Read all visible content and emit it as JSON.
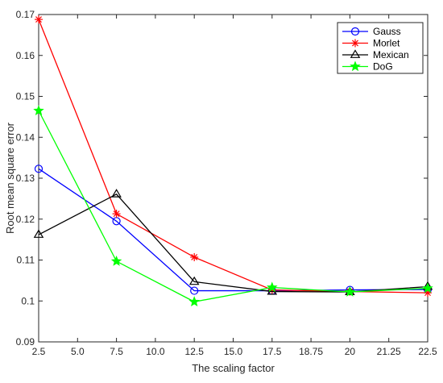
{
  "chart_data": {
    "type": "line",
    "title": "",
    "xlabel": "The scaling factor",
    "ylabel": "Root mean square error",
    "x": [
      2.5,
      7.5,
      12.5,
      17.5,
      20,
      22.5
    ],
    "x_tick_labels": [
      "2.5",
      "5.0",
      "7.5",
      "10.0",
      "12.5",
      "15.0",
      "17.5",
      "18.75",
      "20",
      "21.25",
      "22.5"
    ],
    "y_ticks": [
      "0.09",
      "0.1",
      "0.11",
      "0.12",
      "0.13",
      "0.14",
      "0.15",
      "0.16",
      "0.17"
    ],
    "ylim": [
      0.09,
      0.17
    ],
    "grid": false,
    "legend_position": "top-right",
    "series": [
      {
        "name": "Gauss",
        "color": "#0000ff",
        "marker": "circle",
        "values": [
          0.1323,
          0.1195,
          0.1025,
          0.1025,
          0.1027,
          0.1028
        ]
      },
      {
        "name": "Morlet",
        "color": "#ff0000",
        "marker": "asterisk",
        "values": [
          0.1688,
          0.1213,
          0.1107,
          0.1027,
          0.1023,
          0.102
        ]
      },
      {
        "name": "Mexican",
        "color": "#000000",
        "marker": "triangle",
        "values": [
          0.1162,
          0.1261,
          0.1047,
          0.1023,
          0.1022,
          0.1035
        ]
      },
      {
        "name": "DoG",
        "color": "#00ff00",
        "marker": "star",
        "values": [
          0.1465,
          0.1097,
          0.0998,
          0.1033,
          0.1022,
          0.1031
        ]
      }
    ]
  }
}
